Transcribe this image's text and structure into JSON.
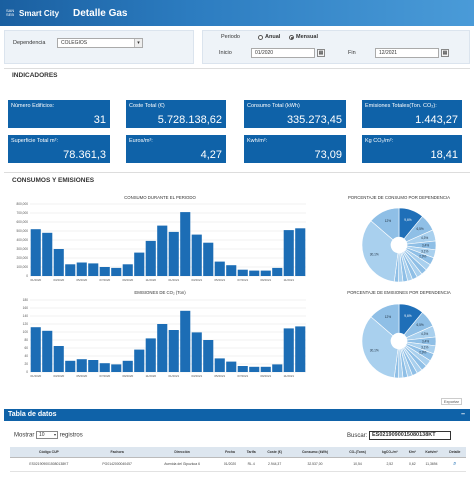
{
  "header": {
    "logo_small": "SAN SEB",
    "logo_big": "Smart City",
    "title": "Detalle Gas"
  },
  "filters": {
    "dependencia_label": "Dependencia",
    "dependencia_value": "COLEGIOS",
    "periodo_label": "Periodo",
    "anual_label": "Anual",
    "mensual_label": "Mensual",
    "inicio_label": "Inicio",
    "inicio_value": "01/2020",
    "fin_label": "Fin",
    "fin_value": "12/2021"
  },
  "indicadores": {
    "title": "INDICADORES",
    "cards": [
      {
        "label": "Número Edificios:",
        "value": "31"
      },
      {
        "label": "Coste Total (€)",
        "value": "5.728.138,62"
      },
      {
        "label": "Consumo Total (kWh)",
        "value": "335.273,45"
      },
      {
        "label": "Emisiones Totales(Ton. CO₂):",
        "value": "1.443,27"
      },
      {
        "label": "Superficie Total m²:",
        "value": "78.361,3"
      },
      {
        "label": "Euros/m²:",
        "value": "4,27"
      },
      {
        "label": "Kwh/m²:",
        "value": "73,09"
      },
      {
        "label": "Kg CO₂/m²:",
        "value": "18,41"
      }
    ]
  },
  "consumos": {
    "title": "CONSUMOS Y EMISIONES"
  },
  "chart_data": [
    {
      "type": "bar",
      "title": "CONSUMO DURANTE EL PERIODO",
      "x": [
        "01/2020",
        "02/2020",
        "03/2020",
        "04/2020",
        "05/2020",
        "06/2020",
        "07/2020",
        "08/2020",
        "09/2020",
        "10/2020",
        "11/2020",
        "12/2020",
        "01/2021",
        "02/2021",
        "03/2021",
        "04/2021",
        "05/2021",
        "06/2021",
        "07/2021",
        "08/2021",
        "09/2021",
        "10/2021",
        "11/2021",
        "12/2021"
      ],
      "tick_labels": [
        "01/2020",
        "03/2020",
        "05/2020",
        "07/2020",
        "09/2020",
        "11/2020",
        "01/2021",
        "03/2021",
        "05/2021",
        "07/2021",
        "09/2021",
        "11/2021"
      ],
      "values": [
        520000,
        480000,
        300000,
        130000,
        150000,
        140000,
        100000,
        90000,
        130000,
        260000,
        390000,
        560000,
        490000,
        710000,
        460000,
        370000,
        160000,
        120000,
        70000,
        60000,
        60000,
        90000,
        510000,
        530000
      ],
      "yticks": [
        "0",
        "100,000",
        "200,000",
        "300,000",
        "400,000",
        "500,000",
        "600,000",
        "700,000",
        "800,000"
      ],
      "ylim": [
        0,
        800000
      ]
    },
    {
      "type": "bar",
      "title": "EMISIONES DE CO₂ (Ton)",
      "x": [
        "01/2020",
        "02/2020",
        "03/2020",
        "04/2020",
        "05/2020",
        "06/2020",
        "07/2020",
        "08/2020",
        "09/2020",
        "10/2020",
        "11/2020",
        "12/2020",
        "01/2021",
        "02/2021",
        "03/2021",
        "04/2021",
        "05/2021",
        "06/2021",
        "07/2021",
        "08/2021",
        "09/2021",
        "10/2021",
        "11/2021",
        "12/2021"
      ],
      "tick_labels": [
        "01/2020",
        "03/2020",
        "05/2020",
        "07/2020",
        "09/2020",
        "11/2020",
        "01/2021",
        "03/2021",
        "05/2021",
        "07/2021",
        "09/2021",
        "11/2021"
      ],
      "values": [
        112,
        103,
        65,
        28,
        32,
        30,
        22,
        19,
        28,
        56,
        84,
        120,
        105,
        153,
        99,
        80,
        34,
        26,
        15,
        13,
        13,
        19,
        109,
        114
      ],
      "yticks": [
        "0",
        "20",
        "40",
        "60",
        "80",
        "100",
        "120",
        "140",
        "160",
        "180"
      ],
      "ylim": [
        0,
        180
      ]
    },
    {
      "type": "pie",
      "title": "PORCENTAJE DE CONSUMO POR DEPENDENCIA",
      "slice_labels": [
        "9,6%",
        "6,5%",
        "4,3%",
        "3,4%",
        "3,1%",
        "2,9%",
        "",
        "",
        "",
        "",
        "",
        "",
        "",
        "",
        "30,1%",
        "12%"
      ],
      "values": [
        9.6,
        6.5,
        4.3,
        3.4,
        3.1,
        2.9,
        2.5,
        2.3,
        2.1,
        2.0,
        1.9,
        1.8,
        1.7,
        1.6,
        30.1,
        12
      ]
    },
    {
      "type": "pie",
      "title": "PORCENTAJE DE EMISIONES POR DEPENDENCIA",
      "slice_labels": [
        "9,6%",
        "6,5%",
        "4,3%",
        "3,4%",
        "3,1%",
        "2,9%",
        "",
        "",
        "",
        "",
        "",
        "",
        "",
        "",
        "30,1%",
        "12%"
      ],
      "values": [
        9.6,
        6.5,
        4.3,
        3.4,
        3.1,
        2.9,
        2.5,
        2.3,
        2.1,
        2.0,
        1.9,
        1.8,
        1.7,
        1.6,
        30.1,
        12
      ]
    }
  ],
  "table": {
    "export_label": "Exportar",
    "title": "Tabla de datos",
    "minimize": "–",
    "show_label": "Mostrar",
    "show_value": "10",
    "registros_label": "registros",
    "search_label": "Buscar:",
    "search_value": "ES0219090015080138KT",
    "headers": [
      "Código CUP",
      "Fachora",
      "Dirección",
      "Fecha",
      "Tarifa",
      "Coste (€)",
      "Consumo (kWh)",
      "CO₂(Tons)",
      "kgCO₂/m²",
      "€/m²",
      "Kwh/m²",
      "Detalle"
    ],
    "row": [
      "ES0219090015080138KT",
      "PG0142000040457",
      "Avenida del Gipuzkoa 6",
      "01/2020",
      "RL.4",
      "2.944,37",
      "32.537,00",
      "10,54",
      "2,52",
      "0,62",
      "11,3694",
      ""
    ]
  },
  "colors": {
    "accent": "#0f62a8",
    "pie_dark": "#1f6fb8",
    "pie_light": "#9ec7e8"
  }
}
